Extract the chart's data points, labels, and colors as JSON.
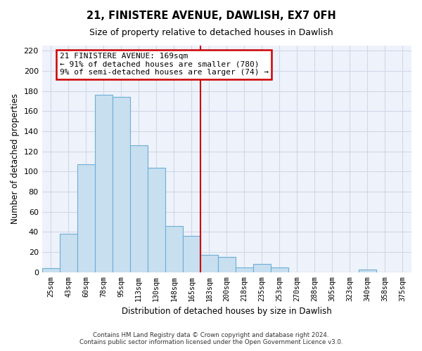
{
  "title": "21, FINISTERE AVENUE, DAWLISH, EX7 0FH",
  "subtitle": "Size of property relative to detached houses in Dawlish",
  "xlabel": "Distribution of detached houses by size in Dawlish",
  "ylabel": "Number of detached properties",
  "bar_labels": [
    "25sqm",
    "43sqm",
    "60sqm",
    "78sqm",
    "95sqm",
    "113sqm",
    "130sqm",
    "148sqm",
    "165sqm",
    "183sqm",
    "200sqm",
    "218sqm",
    "235sqm",
    "253sqm",
    "270sqm",
    "288sqm",
    "305sqm",
    "323sqm",
    "340sqm",
    "358sqm",
    "375sqm"
  ],
  "bar_values": [
    4,
    38,
    107,
    176,
    174,
    126,
    104,
    46,
    36,
    17,
    15,
    5,
    8,
    5,
    0,
    0,
    0,
    0,
    3,
    0,
    0
  ],
  "bar_color": "#c8dff0",
  "bar_edge_color": "#6aaed6",
  "vline_x": 8.5,
  "vline_color": "#cc0000",
  "annotation_line1": "21 FINISTERE AVENUE: 169sqm",
  "annotation_line2": "← 91% of detached houses are smaller (780)",
  "annotation_line3": "9% of semi-detached houses are larger (74) →",
  "annotation_box_edge": "#cc0000",
  "ylim": [
    0,
    225
  ],
  "yticks": [
    0,
    20,
    40,
    60,
    80,
    100,
    120,
    140,
    160,
    180,
    200,
    220
  ],
  "footer_line1": "Contains HM Land Registry data © Crown copyright and database right 2024.",
  "footer_line2": "Contains public sector information licensed under the Open Government Licence v3.0.",
  "bg_color": "#eef2fa",
  "grid_color": "#d0d8e8"
}
